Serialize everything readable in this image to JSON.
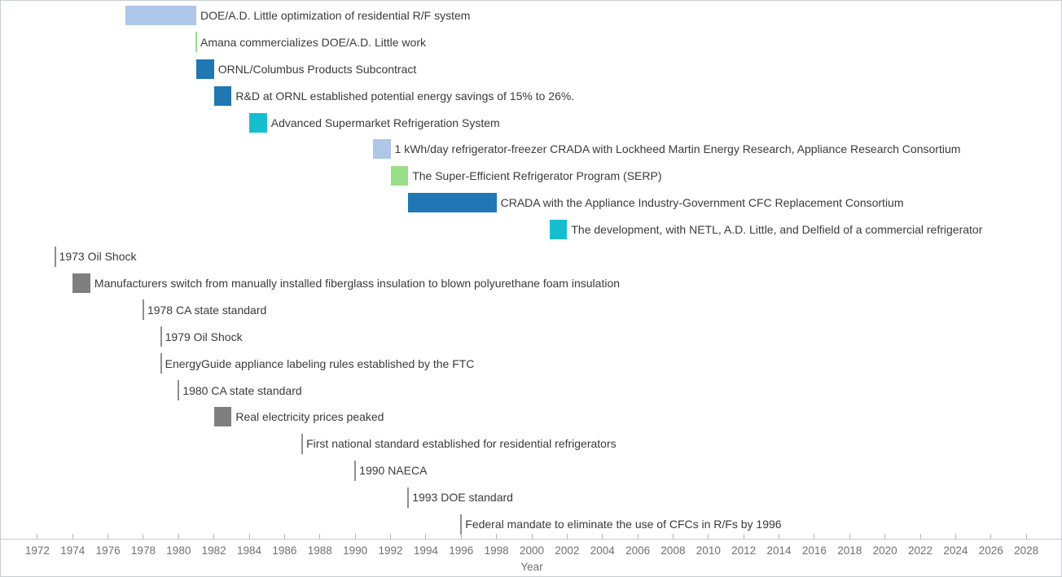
{
  "chart_data": {
    "type": "timeline",
    "title": "",
    "xlabel": "Year",
    "legend": "none",
    "grid": false,
    "x_axis": {
      "min": 1970,
      "max": 2030,
      "tick_min": 1972,
      "tick_max": 2028,
      "tick_step": 2
    },
    "colors": {
      "light_blue": "#aec7e8",
      "blue": "#1f77b4",
      "cyan": "#17becf",
      "light_green": "#98df8a",
      "gray_bar": "#7f7f7f",
      "gray_line": "#8f8f8f",
      "axis_line": "#c9c9c9",
      "tick_label": "#707070",
      "event_label": "#3a3a3a"
    },
    "events": [
      {
        "label": "DOE/A.D. Little optimization of residential R/F system",
        "kind": "range",
        "start": 1977,
        "end": 1981,
        "color": "#aec7e8"
      },
      {
        "label": "Amana commercializes DOE/A.D. Little work",
        "kind": "instant",
        "year": 1981,
        "color": "#98df8a"
      },
      {
        "label": "ORNL/Columbus Products Subcontract",
        "kind": "range",
        "start": 1981,
        "end": 1982,
        "color": "#1f77b4"
      },
      {
        "label": "R&D at ORNL established potential energy savings of 15% to 26%.",
        "kind": "range",
        "start": 1982,
        "end": 1983,
        "color": "#1f77b4"
      },
      {
        "label": "Advanced Supermarket Refrigeration System",
        "kind": "range",
        "start": 1984,
        "end": 1985,
        "color": "#17becf"
      },
      {
        "label": "1 kWh/day refrigerator-freezer CRADA with Lockheed Martin Energy Research, Appliance Research Consortium",
        "kind": "range",
        "start": 1991,
        "end": 1992,
        "color": "#aec7e8"
      },
      {
        "label": "The Super-Efficient Refrigerator Program (SERP)",
        "kind": "range",
        "start": 1992,
        "end": 1993,
        "color": "#98df8a"
      },
      {
        "label": "CRADA with the Appliance Industry-Government CFC Replacement Consortium",
        "kind": "range",
        "start": 1993,
        "end": 1998,
        "color": "#1f77b4"
      },
      {
        "label": "The development, with NETL, A.D. Little, and Delfield of a commercial refrigerator",
        "kind": "range",
        "start": 2001,
        "end": 2002,
        "color": "#17becf"
      },
      {
        "label": "1973 Oil Shock",
        "kind": "instant",
        "year": 1973,
        "color": "#8f8f8f"
      },
      {
        "label": "Manufacturers switch from manually installed fiberglass insulation to blown polyurethane foam insulation",
        "kind": "range",
        "start": 1974,
        "end": 1975,
        "color": "#7f7f7f"
      },
      {
        "label": "1978 CA state standard",
        "kind": "instant",
        "year": 1978,
        "color": "#8f8f8f"
      },
      {
        "label": "1979 Oil Shock",
        "kind": "instant",
        "year": 1979,
        "color": "#8f8f8f"
      },
      {
        "label": "EnergyGuide appliance labeling rules established by the FTC",
        "kind": "instant",
        "year": 1979,
        "color": "#8f8f8f"
      },
      {
        "label": "1980 CA state standard",
        "kind": "instant",
        "year": 1980,
        "color": "#8f8f8f"
      },
      {
        "label": "Real electricity prices peaked",
        "kind": "range",
        "start": 1982,
        "end": 1983,
        "color": "#7f7f7f"
      },
      {
        "label": "First national standard established for residential refrigerators",
        "kind": "instant",
        "year": 1987,
        "color": "#8f8f8f"
      },
      {
        "label": "1990 NAECA",
        "kind": "instant",
        "year": 1990,
        "color": "#8f8f8f"
      },
      {
        "label": "1993 DOE standard",
        "kind": "instant",
        "year": 1993,
        "color": "#8f8f8f"
      },
      {
        "label": "Federal mandate to eliminate the use of CFCs in R/Fs by 1996",
        "kind": "instant",
        "year": 1996,
        "color": "#8f8f8f"
      }
    ]
  }
}
